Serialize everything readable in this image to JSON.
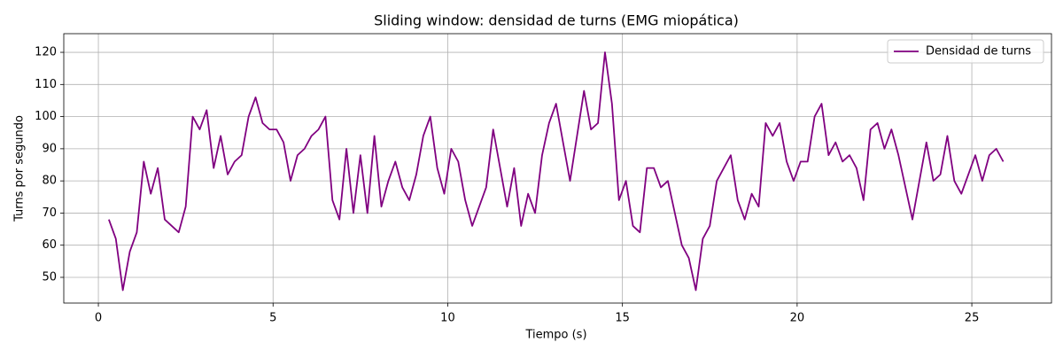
{
  "chart_data": {
    "type": "line",
    "title": "Sliding window: densidad de turns (EMG miopática)",
    "x_label": "Tiempo (s)",
    "y_label": "Turns por segundo",
    "x": [
      0.3,
      0.5,
      0.7,
      0.9,
      1.1,
      1.3,
      1.5,
      1.7,
      1.9,
      2.1,
      2.3,
      2.5,
      2.7,
      2.9,
      3.1,
      3.3,
      3.5,
      3.7,
      3.9,
      4.1,
      4.3,
      4.5,
      4.7,
      4.9,
      5.1,
      5.3,
      5.5,
      5.7,
      5.9,
      6.1,
      6.3,
      6.5,
      6.7,
      6.9,
      7.1,
      7.3,
      7.5,
      7.7,
      7.9,
      8.1,
      8.3,
      8.5,
      8.7,
      8.9,
      9.1,
      9.3,
      9.5,
      9.7,
      9.9,
      10.1,
      10.3,
      10.5,
      10.7,
      10.9,
      11.1,
      11.3,
      11.5,
      11.7,
      11.9,
      12.1,
      12.3,
      12.5,
      12.7,
      12.9,
      13.1,
      13.3,
      13.5,
      13.7,
      13.9,
      14.1,
      14.3,
      14.5,
      14.7,
      14.9,
      15.1,
      15.3,
      15.5,
      15.7,
      15.9,
      16.1,
      16.3,
      16.5,
      16.7,
      16.9,
      17.1,
      17.3,
      17.5,
      17.7,
      17.9,
      18.1,
      18.3,
      18.5,
      18.7,
      18.9,
      19.1,
      19.3,
      19.5,
      19.7,
      19.9,
      20.1,
      20.3,
      20.5,
      20.7,
      20.9,
      21.1,
      21.3,
      21.5,
      21.7,
      21.9,
      22.1,
      22.3,
      22.5,
      22.7,
      22.9,
      23.1,
      23.3,
      23.5,
      23.7,
      23.9,
      24.1,
      24.3,
      24.5,
      24.7,
      24.9,
      25.1,
      25.3,
      25.5,
      25.7,
      25.9
    ],
    "series": [
      {
        "name": "Densidad de turns",
        "color": "#800080",
        "values": [
          68,
          62,
          46,
          58,
          64,
          86,
          76,
          84,
          68,
          66,
          64,
          72,
          100,
          96,
          102,
          84,
          94,
          82,
          86,
          88,
          100,
          106,
          98,
          96,
          96,
          92,
          80,
          88,
          90,
          94,
          96,
          100,
          74,
          68,
          90,
          70,
          88,
          70,
          94,
          72,
          80,
          86,
          78,
          74,
          82,
          94,
          100,
          84,
          76,
          90,
          86,
          74,
          66,
          72,
          78,
          96,
          84,
          72,
          84,
          66,
          76,
          70,
          88,
          98,
          104,
          92,
          80,
          94,
          108,
          96,
          98,
          120,
          104,
          74,
          80,
          66,
          64,
          84,
          84,
          78,
          80,
          70,
          60,
          56,
          46,
          62,
          66,
          80,
          84,
          88,
          74,
          68,
          76,
          72,
          98,
          94,
          98,
          86,
          80,
          86,
          86,
          100,
          104,
          88,
          92,
          86,
          88,
          84,
          74,
          96,
          98,
          90,
          96,
          88,
          78,
          68,
          80,
          92,
          80,
          82,
          94,
          80,
          76,
          82,
          88,
          80,
          88,
          90,
          86
        ]
      }
    ],
    "xlim": [
      -0.99,
      27.28
    ],
    "ylim": [
      42,
      125.8
    ],
    "xticks": [
      0,
      5,
      10,
      15,
      20,
      25
    ],
    "yticks": [
      50,
      60,
      70,
      80,
      90,
      100,
      110,
      120
    ],
    "grid": true,
    "legend": "upper-right"
  }
}
